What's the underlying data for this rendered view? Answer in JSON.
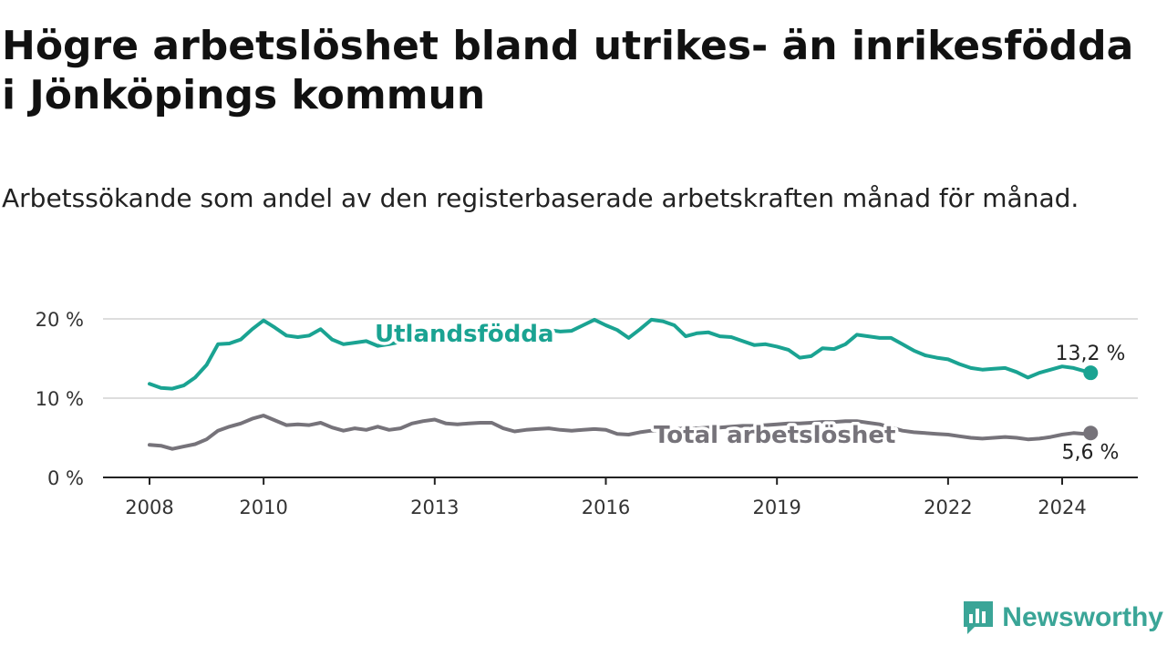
{
  "title": "Högre arbetslöshet bland utrikes- än inrikesfödda i Jönköpings kommun",
  "subtitle": "Arbetssökande som andel av den registerbaserade arbetskraften månad för månad.",
  "brand": {
    "name": "Newsworthy",
    "icon": "newsworthy-logo-icon",
    "color": "#3aa597"
  },
  "chart_data": {
    "type": "line",
    "title": "Högre arbetslöshet bland utrikes- än inrikesfödda i Jönköpings kommun",
    "xlabel": "",
    "ylabel": "",
    "xlim": [
      2008,
      2024.7
    ],
    "ylim": [
      0,
      20
    ],
    "y_ticks": [
      {
        "value": 0,
        "label": "0 %"
      },
      {
        "value": 10,
        "label": "10 %"
      },
      {
        "value": 20,
        "label": "20 %"
      }
    ],
    "x_ticks": [
      {
        "value": 2008,
        "label": "2008"
      },
      {
        "value": 2010,
        "label": "2010"
      },
      {
        "value": 2013,
        "label": "2013"
      },
      {
        "value": 2016,
        "label": "2016"
      },
      {
        "value": 2019,
        "label": "2019"
      },
      {
        "value": 2022,
        "label": "2022"
      },
      {
        "value": 2024,
        "label": "2024"
      }
    ],
    "grid": true,
    "series": [
      {
        "name": "Utlandsfödda",
        "color": "#1aa392",
        "end_label": "13,2 %",
        "x": [
          2008.0,
          2008.2,
          2008.4,
          2008.6,
          2008.8,
          2009.0,
          2009.2,
          2009.4,
          2009.6,
          2009.8,
          2010.0,
          2010.2,
          2010.4,
          2010.6,
          2010.8,
          2011.0,
          2011.2,
          2011.4,
          2011.6,
          2011.8,
          2012.0,
          2012.2,
          2012.4,
          2012.6,
          2012.8,
          2013.0,
          2013.2,
          2013.4,
          2013.6,
          2013.8,
          2014.0,
          2014.2,
          2014.4,
          2014.6,
          2014.8,
          2015.0,
          2015.2,
          2015.4,
          2015.6,
          2015.8,
          2016.0,
          2016.2,
          2016.4,
          2016.6,
          2016.8,
          2017.0,
          2017.2,
          2017.4,
          2017.6,
          2017.8,
          2018.0,
          2018.2,
          2018.4,
          2018.6,
          2018.8,
          2019.0,
          2019.2,
          2019.4,
          2019.6,
          2019.8,
          2020.0,
          2020.2,
          2020.4,
          2020.6,
          2020.8,
          2021.0,
          2021.2,
          2021.4,
          2021.6,
          2021.8,
          2022.0,
          2022.2,
          2022.4,
          2022.6,
          2022.8,
          2023.0,
          2023.2,
          2023.4,
          2023.6,
          2023.8,
          2024.0,
          2024.2,
          2024.4,
          2024.5
        ],
        "values": [
          11.8,
          11.3,
          11.2,
          11.6,
          12.6,
          14.2,
          16.8,
          16.9,
          17.4,
          18.7,
          19.8,
          18.9,
          17.9,
          17.7,
          17.9,
          18.7,
          17.4,
          16.8,
          17.0,
          17.2,
          16.6,
          16.8,
          17.1,
          17.3,
          17.5,
          17.6,
          17.8,
          18.0,
          18.1,
          18.2,
          18.3,
          18.4,
          18.4,
          18.5,
          18.6,
          18.6,
          18.4,
          18.5,
          19.2,
          19.9,
          19.2,
          18.6,
          17.6,
          18.7,
          19.9,
          19.7,
          19.2,
          17.8,
          18.2,
          18.3,
          17.8,
          17.7,
          17.2,
          16.7,
          16.8,
          16.5,
          16.1,
          15.1,
          15.3,
          16.3,
          16.2,
          16.8,
          18.0,
          17.8,
          17.6,
          17.6,
          16.8,
          16.0,
          15.4,
          15.1,
          14.9,
          14.3,
          13.8,
          13.6,
          13.7,
          13.8,
          13.3,
          12.6,
          13.2,
          13.6,
          14.0,
          13.8,
          13.4,
          13.2
        ]
      },
      {
        "name": "Total arbetslöshet",
        "color": "#76737a",
        "end_label": "5,6 %",
        "x": [
          2008.0,
          2008.2,
          2008.4,
          2008.6,
          2008.8,
          2009.0,
          2009.2,
          2009.4,
          2009.6,
          2009.8,
          2010.0,
          2010.2,
          2010.4,
          2010.6,
          2010.8,
          2011.0,
          2011.2,
          2011.4,
          2011.6,
          2011.8,
          2012.0,
          2012.2,
          2012.4,
          2012.6,
          2012.8,
          2013.0,
          2013.2,
          2013.4,
          2013.6,
          2013.8,
          2014.0,
          2014.2,
          2014.4,
          2014.6,
          2014.8,
          2015.0,
          2015.2,
          2015.4,
          2015.6,
          2015.8,
          2016.0,
          2016.2,
          2016.4,
          2016.6,
          2016.8,
          2017.0,
          2017.2,
          2017.4,
          2017.6,
          2017.8,
          2018.0,
          2018.2,
          2018.4,
          2018.6,
          2018.8,
          2019.0,
          2019.2,
          2019.4,
          2019.6,
          2019.8,
          2020.0,
          2020.2,
          2020.4,
          2020.6,
          2020.8,
          2021.0,
          2021.2,
          2021.4,
          2021.6,
          2021.8,
          2022.0,
          2022.2,
          2022.4,
          2022.6,
          2022.8,
          2023.0,
          2023.2,
          2023.4,
          2023.6,
          2023.8,
          2024.0,
          2024.2,
          2024.4,
          2024.5
        ],
        "values": [
          4.1,
          4.0,
          3.6,
          3.9,
          4.2,
          4.8,
          5.9,
          6.4,
          6.8,
          7.4,
          7.8,
          7.2,
          6.6,
          6.7,
          6.6,
          6.9,
          6.3,
          5.9,
          6.2,
          6.0,
          6.4,
          6.0,
          6.2,
          6.8,
          7.1,
          7.3,
          6.8,
          6.7,
          6.8,
          6.9,
          6.9,
          6.2,
          5.8,
          6.0,
          6.1,
          6.2,
          6.0,
          5.9,
          6.0,
          6.1,
          6.0,
          5.5,
          5.4,
          5.7,
          5.9,
          6.0,
          6.1,
          6.2,
          6.2,
          6.3,
          6.3,
          6.4,
          6.5,
          6.5,
          6.6,
          6.7,
          6.8,
          6.8,
          6.9,
          7.0,
          7.0,
          7.1,
          7.1,
          6.9,
          6.7,
          6.3,
          5.9,
          5.7,
          5.6,
          5.5,
          5.4,
          5.2,
          5.0,
          4.9,
          5.0,
          5.1,
          5.0,
          4.8,
          4.9,
          5.1,
          5.4,
          5.6,
          5.5,
          5.6
        ]
      }
    ]
  }
}
